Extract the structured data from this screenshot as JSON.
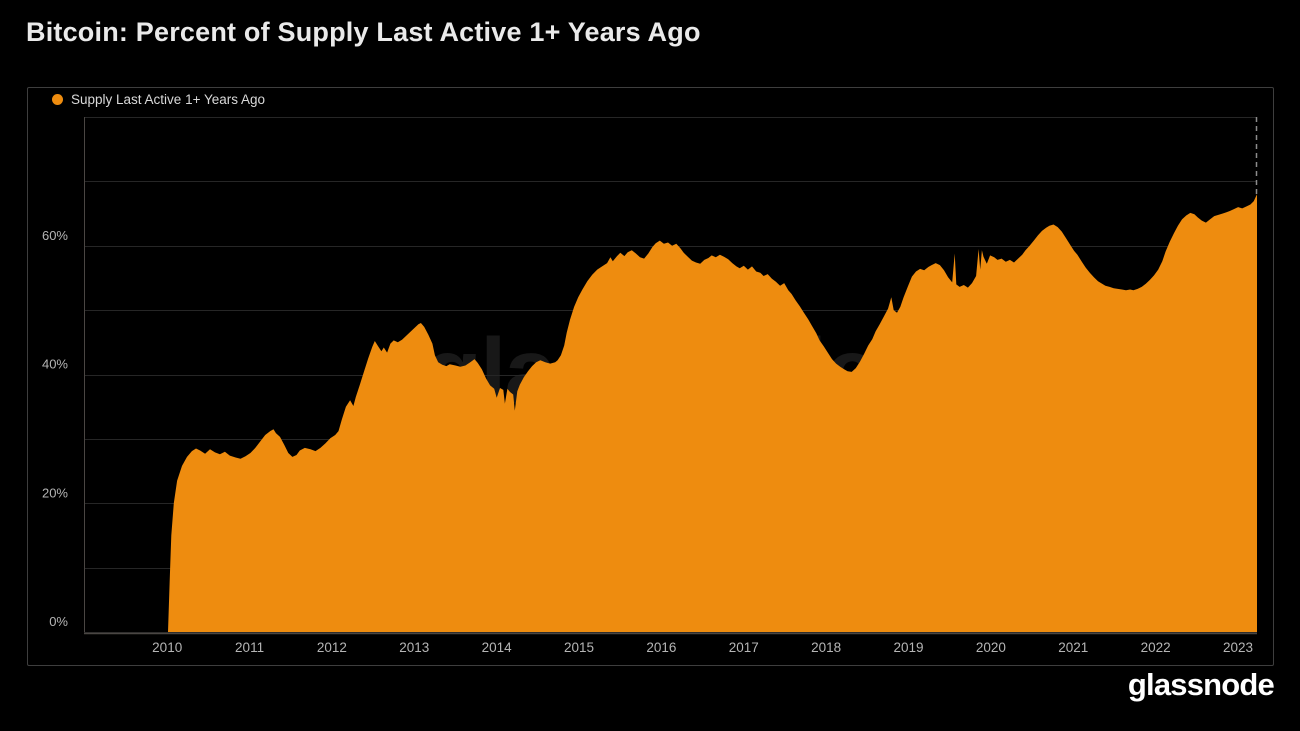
{
  "page": {
    "background": "#000000"
  },
  "header": {
    "title": "Bitcoin: Percent of Supply Last Active 1+ Years Ago"
  },
  "legend": {
    "items": [
      {
        "label": "Supply Last Active 1+ Years Ago",
        "color": "#ee8c0f"
      }
    ]
  },
  "watermark": {
    "text": "glassnode"
  },
  "footer": {
    "logo_text": "glassnode"
  },
  "chart_data": {
    "type": "area",
    "title": "Bitcoin: Percent of Supply Last Active 1+ Years Ago",
    "xlabel": "",
    "ylabel": "",
    "xlim": [
      2008.99,
      2023.23
    ],
    "ylim": [
      0,
      80
    ],
    "grid": true,
    "legend_position": "top-left",
    "x_ticks": [
      2010,
      2011,
      2012,
      2013,
      2014,
      2015,
      2016,
      2017,
      2018,
      2019,
      2020,
      2021,
      2022,
      2023
    ],
    "y_ticks": [
      {
        "value": 0,
        "label": "0%"
      },
      {
        "value": 20,
        "label": "20%"
      },
      {
        "value": 40,
        "label": "40%"
      },
      {
        "value": 60,
        "label": "60%"
      }
    ],
    "y_gridline_step": 10,
    "last_value_dashed_line": true,
    "colors": {
      "area": "#ee8c0f",
      "grid": "#262626",
      "axis": "#4a4643",
      "tick_text": "#b5b5b5",
      "dashed_line": "#8c8c8c",
      "panel_border": "#3e3e3e"
    },
    "series": [
      {
        "name": "Supply Last Active 1+ Years Ago",
        "color": "#ee8c0f",
        "unit": "%",
        "points": [
          [
            2010.01,
            0
          ],
          [
            2010.03,
            8
          ],
          [
            2010.05,
            15
          ],
          [
            2010.08,
            20
          ],
          [
            2010.12,
            23.5
          ],
          [
            2010.18,
            25.8
          ],
          [
            2010.24,
            27.2
          ],
          [
            2010.3,
            28.1
          ],
          [
            2010.35,
            28.5
          ],
          [
            2010.4,
            28.2
          ],
          [
            2010.46,
            27.7
          ],
          [
            2010.52,
            28.4
          ],
          [
            2010.58,
            27.9
          ],
          [
            2010.64,
            27.6
          ],
          [
            2010.7,
            28
          ],
          [
            2010.76,
            27.4
          ],
          [
            2010.83,
            27.1
          ],
          [
            2010.89,
            26.9
          ],
          [
            2010.95,
            27.3
          ],
          [
            2011.01,
            27.8
          ],
          [
            2011.07,
            28.6
          ],
          [
            2011.13,
            29.6
          ],
          [
            2011.19,
            30.6
          ],
          [
            2011.25,
            31.2
          ],
          [
            2011.29,
            31.5
          ],
          [
            2011.32,
            30.9
          ],
          [
            2011.37,
            30.3
          ],
          [
            2011.42,
            29.1
          ],
          [
            2011.47,
            27.8
          ],
          [
            2011.52,
            27.2
          ],
          [
            2011.57,
            27.5
          ],
          [
            2011.61,
            28.2
          ],
          [
            2011.67,
            28.6
          ],
          [
            2011.74,
            28.4
          ],
          [
            2011.8,
            28.1
          ],
          [
            2011.86,
            28.6
          ],
          [
            2011.92,
            29.3
          ],
          [
            2011.98,
            30.1
          ],
          [
            2012.04,
            30.6
          ],
          [
            2012.08,
            31.2
          ],
          [
            2012.12,
            33
          ],
          [
            2012.17,
            35
          ],
          [
            2012.22,
            36
          ],
          [
            2012.26,
            35.1
          ],
          [
            2012.29,
            36.5
          ],
          [
            2012.34,
            38.5
          ],
          [
            2012.39,
            40.5
          ],
          [
            2012.44,
            42.5
          ],
          [
            2012.49,
            44.3
          ],
          [
            2012.52,
            45.2
          ],
          [
            2012.56,
            44.4
          ],
          [
            2012.6,
            43.6
          ],
          [
            2012.63,
            44.2
          ],
          [
            2012.67,
            43.4
          ],
          [
            2012.71,
            44.8
          ],
          [
            2012.75,
            45.3
          ],
          [
            2012.8,
            45
          ],
          [
            2012.85,
            45.4
          ],
          [
            2012.9,
            46
          ],
          [
            2012.95,
            46.6
          ],
          [
            2013,
            47.2
          ],
          [
            2013.05,
            47.8
          ],
          [
            2013.08,
            48
          ],
          [
            2013.12,
            47.4
          ],
          [
            2013.17,
            46.2
          ],
          [
            2013.22,
            44.8
          ],
          [
            2013.25,
            43
          ],
          [
            2013.29,
            41.9
          ],
          [
            2013.34,
            41.5
          ],
          [
            2013.39,
            41.3
          ],
          [
            2013.43,
            41.6
          ],
          [
            2013.5,
            41.4
          ],
          [
            2013.56,
            41.2
          ],
          [
            2013.62,
            41.4
          ],
          [
            2013.68,
            41.9
          ],
          [
            2013.73,
            42.4
          ],
          [
            2013.77,
            41.8
          ],
          [
            2013.82,
            40.8
          ],
          [
            2013.87,
            39.4
          ],
          [
            2013.92,
            38.3
          ],
          [
            2013.97,
            37.8
          ],
          [
            2014,
            36.4
          ],
          [
            2014.04,
            37.9
          ],
          [
            2014.08,
            37.6
          ],
          [
            2014.1,
            35.5
          ],
          [
            2014.13,
            37.8
          ],
          [
            2014.16,
            37.3
          ],
          [
            2014.2,
            36.9
          ],
          [
            2014.22,
            34.4
          ],
          [
            2014.25,
            37.4
          ],
          [
            2014.28,
            38.4
          ],
          [
            2014.33,
            39.6
          ],
          [
            2014.38,
            40.5
          ],
          [
            2014.43,
            41.3
          ],
          [
            2014.48,
            41.9
          ],
          [
            2014.53,
            42.2
          ],
          [
            2014.59,
            41.9
          ],
          [
            2014.65,
            41.7
          ],
          [
            2014.71,
            41.9
          ],
          [
            2014.74,
            42.2
          ],
          [
            2014.78,
            43
          ],
          [
            2014.82,
            44.5
          ],
          [
            2014.85,
            46.5
          ],
          [
            2014.89,
            48.5
          ],
          [
            2014.94,
            50.5
          ],
          [
            2014.99,
            52
          ],
          [
            2015.04,
            53.2
          ],
          [
            2015.1,
            54.5
          ],
          [
            2015.16,
            55.5
          ],
          [
            2015.22,
            56.3
          ],
          [
            2015.28,
            56.8
          ],
          [
            2015.34,
            57.3
          ],
          [
            2015.38,
            58.2
          ],
          [
            2015.41,
            57.6
          ],
          [
            2015.46,
            58.4
          ],
          [
            2015.5,
            58.9
          ],
          [
            2015.55,
            58.4
          ],
          [
            2015.59,
            59
          ],
          [
            2015.64,
            59.3
          ],
          [
            2015.69,
            58.8
          ],
          [
            2015.74,
            58.2
          ],
          [
            2015.79,
            58
          ],
          [
            2015.84,
            58.8
          ],
          [
            2015.89,
            59.8
          ],
          [
            2015.93,
            60.4
          ],
          [
            2015.98,
            60.8
          ],
          [
            2016.03,
            60.3
          ],
          [
            2016.08,
            60.5
          ],
          [
            2016.13,
            60
          ],
          [
            2016.18,
            60.3
          ],
          [
            2016.23,
            59.6
          ],
          [
            2016.27,
            58.9
          ],
          [
            2016.32,
            58.3
          ],
          [
            2016.37,
            57.7
          ],
          [
            2016.42,
            57.4
          ],
          [
            2016.47,
            57.2
          ],
          [
            2016.52,
            57.8
          ],
          [
            2016.57,
            58.1
          ],
          [
            2016.61,
            58.5
          ],
          [
            2016.66,
            58.2
          ],
          [
            2016.71,
            58.6
          ],
          [
            2016.76,
            58.3
          ],
          [
            2016.81,
            57.9
          ],
          [
            2016.86,
            57.3
          ],
          [
            2016.91,
            56.8
          ],
          [
            2016.95,
            56.5
          ],
          [
            2017,
            56.9
          ],
          [
            2017.05,
            56.3
          ],
          [
            2017.1,
            56.8
          ],
          [
            2017.15,
            56
          ],
          [
            2017.2,
            55.8
          ],
          [
            2017.24,
            55.3
          ],
          [
            2017.29,
            55.6
          ],
          [
            2017.34,
            54.9
          ],
          [
            2017.39,
            54.4
          ],
          [
            2017.44,
            53.8
          ],
          [
            2017.49,
            54.2
          ],
          [
            2017.54,
            53.1
          ],
          [
            2017.58,
            52.5
          ],
          [
            2017.63,
            51.5
          ],
          [
            2017.68,
            50.6
          ],
          [
            2017.73,
            49.6
          ],
          [
            2017.78,
            48.6
          ],
          [
            2017.83,
            47.5
          ],
          [
            2017.88,
            46.4
          ],
          [
            2017.92,
            45.3
          ],
          [
            2017.97,
            44.4
          ],
          [
            2018.02,
            43.4
          ],
          [
            2018.07,
            42.4
          ],
          [
            2018.12,
            41.7
          ],
          [
            2018.17,
            41.2
          ],
          [
            2018.22,
            40.8
          ],
          [
            2018.26,
            40.5
          ],
          [
            2018.31,
            40.4
          ],
          [
            2018.36,
            41
          ],
          [
            2018.41,
            42
          ],
          [
            2018.46,
            43.2
          ],
          [
            2018.51,
            44.5
          ],
          [
            2018.56,
            45.5
          ],
          [
            2018.6,
            46.7
          ],
          [
            2018.65,
            47.8
          ],
          [
            2018.7,
            49
          ],
          [
            2018.75,
            50.2
          ],
          [
            2018.79,
            52
          ],
          [
            2018.82,
            50
          ],
          [
            2018.86,
            49.6
          ],
          [
            2018.9,
            50.5
          ],
          [
            2018.94,
            52
          ],
          [
            2018.99,
            53.6
          ],
          [
            2019.04,
            55.2
          ],
          [
            2019.09,
            56
          ],
          [
            2019.14,
            56.4
          ],
          [
            2019.19,
            56.2
          ],
          [
            2019.24,
            56.7
          ],
          [
            2019.28,
            57
          ],
          [
            2019.33,
            57.3
          ],
          [
            2019.38,
            57
          ],
          [
            2019.43,
            56.2
          ],
          [
            2019.48,
            55.1
          ],
          [
            2019.53,
            54.3
          ],
          [
            2019.56,
            58.8
          ],
          [
            2019.58,
            54
          ],
          [
            2019.62,
            53.6
          ],
          [
            2019.67,
            53.9
          ],
          [
            2019.72,
            53.5
          ],
          [
            2019.77,
            54.2
          ],
          [
            2019.82,
            55.3
          ],
          [
            2019.85,
            59.5
          ],
          [
            2019.87,
            56.3
          ],
          [
            2019.89,
            59.3
          ],
          [
            2019.91,
            58.3
          ],
          [
            2019.95,
            57.2
          ],
          [
            2019.99,
            58.5
          ],
          [
            2020.04,
            58.2
          ],
          [
            2020.08,
            57.8
          ],
          [
            2020.13,
            58
          ],
          [
            2020.18,
            57.5
          ],
          [
            2020.23,
            57.8
          ],
          [
            2020.28,
            57.4
          ],
          [
            2020.33,
            58
          ],
          [
            2020.38,
            58.6
          ],
          [
            2020.42,
            59.3
          ],
          [
            2020.47,
            60
          ],
          [
            2020.52,
            60.8
          ],
          [
            2020.57,
            61.6
          ],
          [
            2020.62,
            62.3
          ],
          [
            2020.67,
            62.8
          ],
          [
            2020.71,
            63.1
          ],
          [
            2020.76,
            63.3
          ],
          [
            2020.81,
            62.9
          ],
          [
            2020.86,
            62.2
          ],
          [
            2020.91,
            61.2
          ],
          [
            2020.96,
            60.2
          ],
          [
            2021.01,
            59.2
          ],
          [
            2021.05,
            58.6
          ],
          [
            2021.1,
            57.6
          ],
          [
            2021.15,
            56.6
          ],
          [
            2021.2,
            55.8
          ],
          [
            2021.25,
            55.1
          ],
          [
            2021.3,
            54.5
          ],
          [
            2021.35,
            54.1
          ],
          [
            2021.39,
            53.8
          ],
          [
            2021.44,
            53.6
          ],
          [
            2021.49,
            53.4
          ],
          [
            2021.54,
            53.3
          ],
          [
            2021.59,
            53.2
          ],
          [
            2021.64,
            53.1
          ],
          [
            2021.69,
            53.2
          ],
          [
            2021.73,
            53.1
          ],
          [
            2021.78,
            53.3
          ],
          [
            2021.83,
            53.6
          ],
          [
            2021.88,
            54.1
          ],
          [
            2021.93,
            54.7
          ],
          [
            2021.98,
            55.4
          ],
          [
            2022.03,
            56.3
          ],
          [
            2022.08,
            57.6
          ],
          [
            2022.12,
            59.1
          ],
          [
            2022.17,
            60.6
          ],
          [
            2022.22,
            61.9
          ],
          [
            2022.27,
            63.1
          ],
          [
            2022.32,
            64.1
          ],
          [
            2022.37,
            64.7
          ],
          [
            2022.42,
            65.1
          ],
          [
            2022.47,
            64.9
          ],
          [
            2022.51,
            64.4
          ],
          [
            2022.56,
            63.9
          ],
          [
            2022.61,
            63.6
          ],
          [
            2022.66,
            64.1
          ],
          [
            2022.71,
            64.6
          ],
          [
            2022.76,
            64.8
          ],
          [
            2022.81,
            65
          ],
          [
            2022.86,
            65.2
          ],
          [
            2022.9,
            65.4
          ],
          [
            2022.95,
            65.7
          ],
          [
            2023,
            66
          ],
          [
            2023.05,
            65.8
          ],
          [
            2023.1,
            66.1
          ],
          [
            2023.15,
            66.4
          ],
          [
            2023.19,
            66.9
          ],
          [
            2023.23,
            68
          ]
        ]
      }
    ]
  }
}
